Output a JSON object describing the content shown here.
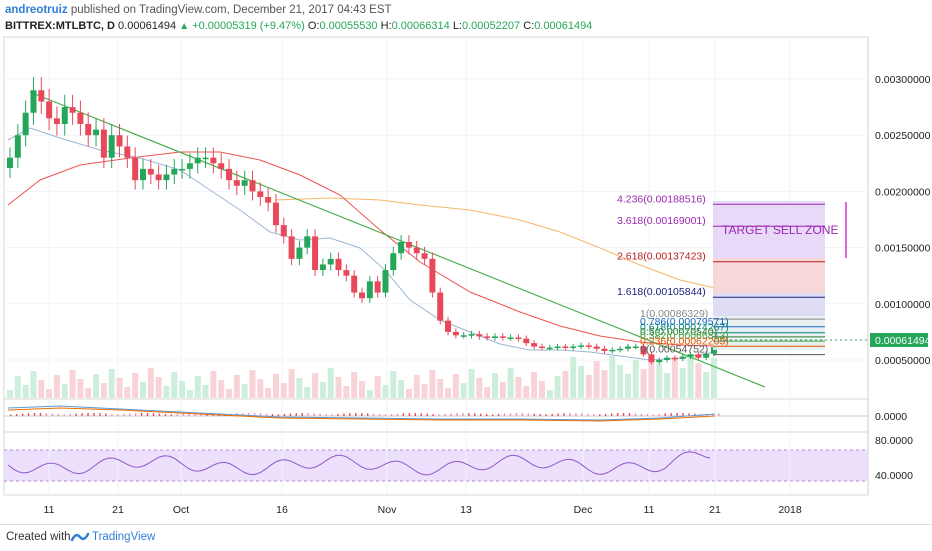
{
  "header": {
    "author": "andreotruiz",
    "published_text": "published on TradingView.com, December 21, 2017 04:43 EST",
    "symbol_label": "BITTREX:MTLBTC, D",
    "last": "0.00061494",
    "change": "+0.00005319 (+9.47%)",
    "o_label": "O:",
    "o_value": "0.00055530",
    "h_label": "H:",
    "h_value": "0.00066314",
    "l_label": "L:",
    "l_value": "0.00052207",
    "c_label": "C:",
    "c_value": "0.00061494"
  },
  "price_axis": {
    "ticks": [
      "0.00300000",
      "0.00250000",
      "0.00200000",
      "0.00150000",
      "0.00100000",
      "0.00050000"
    ],
    "current_price": "0.00061494"
  },
  "macd_axis": {
    "ticks": [
      "0.0000"
    ]
  },
  "rsi_axis": {
    "ticks": [
      "80.0000",
      "40.0000"
    ]
  },
  "time_axis": {
    "labels": [
      "11",
      "21",
      "Oct",
      "16",
      "Nov",
      "13",
      "Dec",
      "11",
      "21",
      "2018"
    ]
  },
  "fib_levels": [
    "4.236(0.00188516)",
    "3.618(0.00169001)",
    "2.618(0.00137423)",
    "1.618(0.00105844)",
    "1(0.00086329)",
    "0.786(0.00079571)",
    "0.618(0.00074267)",
    "0.5(0.00070540)",
    "0.382(0.00066813)",
    "0.236(0.00062203)",
    "0(0.00054752)"
  ],
  "zone_label": "TARGET SELL ZONE",
  "footer": {
    "created_with": "Created with",
    "brand": "TradingView"
  },
  "colors": {
    "up": "#26a65b",
    "down": "#e8495a",
    "trendline": "#4caf50",
    "ma_fast": "#9db6d4",
    "ma_mid": "#ef5350",
    "ma_slow": "#f5b66a",
    "zone_fill": "#cc00cc",
    "rsi_fill": "#e9d8fb"
  },
  "chart_data": {
    "type": "candlestick",
    "symbol": "BITTREX:MTLBTC",
    "interval": "D",
    "y_axis_values": [
      0.003,
      0.0025,
      0.002,
      0.0015,
      0.001,
      0.0005
    ],
    "last_price": 0.00061494,
    "ohlc_last": {
      "open": 0.0005553,
      "high": 0.00066314,
      "low": 0.00052207,
      "close": 0.00061494
    },
    "closes": [
      0.0023,
      0.0025,
      0.0027,
      0.0029,
      0.0028,
      0.00265,
      0.0026,
      0.00275,
      0.0027,
      0.0026,
      0.0025,
      0.00255,
      0.0023,
      0.0025,
      0.0024,
      0.0023,
      0.0021,
      0.0022,
      0.00215,
      0.0021,
      0.00215,
      0.0022,
      0.0022,
      0.00225,
      0.0023,
      0.0023,
      0.00225,
      0.0022,
      0.0021,
      0.00205,
      0.0021,
      0.002,
      0.00195,
      0.0019,
      0.0017,
      0.0016,
      0.0014,
      0.0015,
      0.0016,
      0.0013,
      0.00135,
      0.0014,
      0.0013,
      0.00125,
      0.0011,
      0.00105,
      0.0012,
      0.0011,
      0.0013,
      0.00145,
      0.00155,
      0.0015,
      0.00145,
      0.0014,
      0.0011,
      0.00085,
      0.00075,
      0.00072,
      0.00072,
      0.00073,
      0.00071,
      0.0007,
      0.00071,
      0.0007,
      0.0007,
      0.00069,
      0.00065,
      0.00062,
      0.00061,
      0.00061,
      0.00062,
      0.00061,
      0.00062,
      0.00063,
      0.00062,
      0.0006,
      0.00058,
      0.00059,
      0.0006,
      0.00062,
      0.00062,
      0.00055,
      0.00048,
      0.0005,
      0.00052,
      0.00051,
      0.00053,
      0.00055,
      0.00052,
      0.000555,
      0.00061494
    ],
    "fibonacci_extension": [
      {
        "ratio": 4.236,
        "price": 0.00188516
      },
      {
        "ratio": 3.618,
        "price": 0.00169001
      },
      {
        "ratio": 2.618,
        "price": 0.00137423
      },
      {
        "ratio": 1.618,
        "price": 0.00105844
      },
      {
        "ratio": 1,
        "price": 0.00086329
      },
      {
        "ratio": 0.786,
        "price": 0.00079571
      },
      {
        "ratio": 0.618,
        "price": 0.00074267
      },
      {
        "ratio": 0.5,
        "price": 0.0007054
      },
      {
        "ratio": 0.382,
        "price": 0.00066813
      },
      {
        "ratio": 0.236,
        "price": 0.00062203
      },
      {
        "ratio": 0,
        "price": 0.00054752
      }
    ],
    "rsi_levels": [
      80,
      40
    ],
    "annotation": "TARGET SELL ZONE",
    "grid": true
  }
}
